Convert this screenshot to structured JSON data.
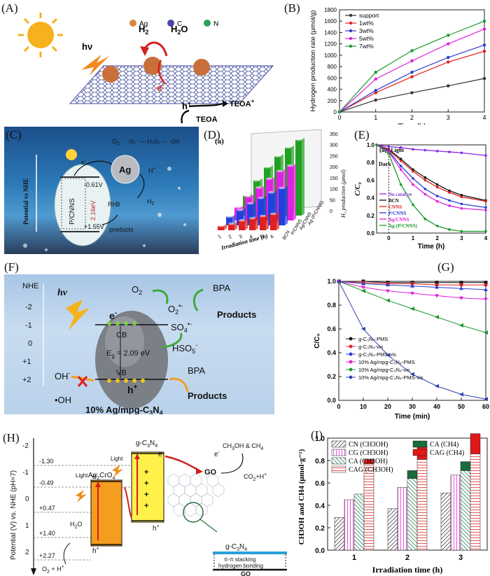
{
  "panels": {
    "A": {
      "label": "(A)",
      "legend": [
        "Ag",
        "C",
        "N"
      ],
      "legend_colors": [
        "#d98540",
        "#4a46a8",
        "#2fa05a"
      ],
      "hv": "hν",
      "h2": "H",
      "h2_sub": "2",
      "h2o": "H",
      "h2o_sub": "2",
      "h2o_tail": "O",
      "electron": "e",
      "hole": "h",
      "sup_minus": "-",
      "sup_plus": "+",
      "teoa_plus": "TEOA",
      "teoa": "TEOA"
    },
    "B": {
      "label": "(B)",
      "chart_data": {
        "type": "line",
        "xlabel": "Time (h)",
        "ylabel": "Hydrogen production rate (μmol/g)",
        "x": [
          0,
          1,
          2,
          3,
          4
        ],
        "xlim": [
          0,
          4
        ],
        "ylim": [
          0,
          1800
        ],
        "yticks": [
          0,
          200,
          400,
          600,
          800,
          1000,
          1200,
          1400,
          1600,
          1800
        ],
        "series": [
          {
            "name": "support",
            "color": "#333333",
            "values": [
              0,
              210,
              340,
              460,
              590
            ]
          },
          {
            "name": "1wt%",
            "color": "#e02020",
            "values": [
              0,
              340,
              620,
              880,
              1070
            ]
          },
          {
            "name": "3wt%",
            "color": "#2b3fd0",
            "values": [
              0,
              380,
              700,
              960,
              1180
            ]
          },
          {
            "name": "5wt%",
            "color": "#e020d8",
            "values": [
              0,
              580,
              900,
              1200,
              1460
            ]
          },
          {
            "name": "7wt%",
            "color": "#1a9a2a",
            "values": [
              0,
              700,
              1080,
              1350,
              1600
            ]
          }
        ]
      }
    },
    "C": {
      "label": "(C)",
      "axis": "Potential vs NHE",
      "catalyst": "P/CNNS",
      "ag": "Ag",
      "cb": "-0.61V",
      "vb": "+1.55V",
      "gap": "2.16eV",
      "h2": "H",
      "h2_sub": "2",
      "hplus": "H",
      "hplus_sup": "+",
      "rhb": "RhB",
      "products": "products",
      "o2": "O",
      "o2_sub": "2",
      "chain": "·O₂⁻ — H₂O₂ — ·OH",
      "electron": "e",
      "electron_sup": "-"
    },
    "D": {
      "label": "(D)",
      "sub": "(a)",
      "xlabel": "Irradiation time (h)",
      "zlabel": "H₂ production (μmol)",
      "zticks": [
        "0",
        "50",
        "100",
        "150",
        "200",
        "250",
        "300",
        "350"
      ],
      "series_labels": [
        "BCN",
        "P/CNNS",
        "Ag/CNNS",
        "Ag-(P/CNNS)"
      ],
      "colors": [
        "#303030",
        "#e02020",
        "#2040e0",
        "#e020e0",
        "#20a020"
      ],
      "chart_data": {
        "type": "bar",
        "title": "",
        "categories": [
          "1",
          "2",
          "3",
          "4",
          "5",
          "6"
        ],
        "series": [
          {
            "name": "BCN",
            "values": [
              20,
              30,
              45,
              55,
              65,
              75
            ]
          },
          {
            "name": "P/CNNS",
            "values": [
              40,
              70,
              100,
              125,
              150,
              170
            ]
          },
          {
            "name": "Ag/CNNS",
            "values": [
              60,
              110,
              150,
              190,
              225,
              250
            ]
          },
          {
            "name": "Ag-(P/CNNS)",
            "values": [
              90,
              160,
              220,
              270,
              310,
              345
            ]
          }
        ],
        "zlim": [
          0,
          350
        ]
      }
    },
    "E": {
      "label": "(E)",
      "sub": "(a)",
      "light": "Light",
      "dark": "Dark",
      "chart_data": {
        "type": "line",
        "xlabel": "Time (h)",
        "ylabel": "C/C₀",
        "x": [
          -0.5,
          0,
          0.5,
          1,
          1.5,
          2,
          2.5,
          3,
          4
        ],
        "xlim": [
          -0.5,
          4
        ],
        "ylim": [
          0,
          1.0
        ],
        "xticks": [
          0,
          1,
          2,
          3,
          4
        ],
        "yticks": [
          0,
          0.2,
          0.4,
          0.6,
          0.8,
          1.0
        ],
        "series": [
          {
            "name": "No catalyst",
            "color": "#8a2be2",
            "values": [
              1.0,
              0.98,
              0.97,
              0.95,
              0.94,
              0.93,
              0.92,
              0.91,
              0.88
            ]
          },
          {
            "name": "BCN",
            "color": "#111111",
            "values": [
              1.0,
              0.95,
              0.84,
              0.72,
              0.63,
              0.55,
              0.48,
              0.43,
              0.37
            ]
          },
          {
            "name": "CNNS",
            "color": "#e02020",
            "values": [
              1.0,
              0.94,
              0.82,
              0.7,
              0.6,
              0.52,
              0.46,
              0.41,
              0.36
            ]
          },
          {
            "name": "P/CNNS",
            "color": "#2b3fd0",
            "values": [
              1.0,
              0.93,
              0.76,
              0.62,
              0.5,
              0.42,
              0.37,
              0.33,
              0.29
            ]
          },
          {
            "name": "Ag/CNNS",
            "color": "#e020d8",
            "values": [
              1.0,
              0.92,
              0.72,
              0.55,
              0.44,
              0.36,
              0.31,
              0.28,
              0.26
            ]
          },
          {
            "name": "Ag-(P/CNNS)",
            "color": "#1a9a2a",
            "values": [
              1.0,
              0.9,
              0.55,
              0.32,
              0.16,
              0.08,
              0.04,
              0.02,
              0.02
            ]
          }
        ]
      }
    },
    "F": {
      "label": "(F)",
      "nhe": "NHE",
      "ticks": [
        "-2",
        "-1",
        "0",
        "+1",
        "+2"
      ],
      "hv": "hv",
      "cb": "CB",
      "vb": "VB",
      "eg": "E",
      "eg_sub": "g",
      "eg_val": " = 2.09 eV",
      "electron": "e",
      "electron_sup": "-",
      "hole": "h",
      "hole_sup": "+",
      "o2": "O",
      "o2_sub": "2",
      "o2rad": "O",
      "o2rad_sub": "2",
      "o2rad_sup": "•-",
      "bpa_top": "BPA",
      "products_top": "Products",
      "so4": "SO",
      "so4_sub": "4",
      "so4_sup": "•-",
      "hso5": "HSO",
      "hso5_sub": "5",
      "hso5_sup": "-",
      "bpa_bottom": "BPA",
      "products_bottom": "Products",
      "ohminus": "OH",
      "ohminus_sup": "-",
      "ohrad": "•OH",
      "caption": "10% Ag/mpg-C",
      "caption_sub1": "3",
      "caption_mid": "N",
      "caption_sub2": "4"
    },
    "G": {
      "label": "(G)",
      "chart_data": {
        "type": "line",
        "xlabel": "Time (min)",
        "ylabel": "C/C₀",
        "x": [
          0,
          10,
          20,
          30,
          40,
          50,
          60
        ],
        "xlim": [
          0,
          60
        ],
        "ylim": [
          0,
          1.0
        ],
        "yticks": [
          0.0,
          0.2,
          0.4,
          0.6,
          0.8,
          1.0
        ],
        "xticks": [
          0,
          10,
          20,
          30,
          40,
          50,
          60
        ],
        "series": [
          {
            "name": "g-C₃N₄-PMS",
            "color": "#111111",
            "values": [
              1.0,
              1.0,
              0.99,
              0.99,
              0.99,
              0.99,
              0.99
            ]
          },
          {
            "name": "g-C₃N₄-vis",
            "color": "#e02020",
            "values": [
              1.0,
              0.99,
              0.98,
              0.98,
              0.97,
              0.97,
              0.97
            ]
          },
          {
            "name": "g-C₃N₄-PMS-vis",
            "color": "#2b3fd0",
            "values": [
              1.0,
              0.98,
              0.97,
              0.96,
              0.95,
              0.94,
              0.93
            ]
          },
          {
            "name": "10% Ag/mpg-C₃N₄-PMS",
            "color": "#e020d8",
            "values": [
              1.0,
              0.95,
              0.92,
              0.9,
              0.88,
              0.86,
              0.85
            ]
          },
          {
            "name": "10% Ag/mpg-C₃N₄-vis",
            "color": "#1a9a2a",
            "values": [
              1.0,
              0.92,
              0.84,
              0.77,
              0.7,
              0.63,
              0.57
            ]
          },
          {
            "name": "10% Ag/mpg-C₃N₄-PMS-vis",
            "color": "#3040b0",
            "values": [
              1.0,
              0.6,
              0.38,
              0.22,
              0.12,
              0.05,
              0.01
            ]
          }
        ]
      }
    },
    "H": {
      "label": "(H)",
      "axis": "Potential (V) vs. NHE (pH=7)",
      "ticks": [
        "-2",
        "-1",
        "0",
        "1",
        "2"
      ],
      "levels": [
        "-1.30",
        "-0.49",
        "+0.47",
        "+1.40",
        "+2.27"
      ],
      "gcn": "g-C",
      "gcn_sub1": "3",
      "gcn_mid": "N",
      "gcn_sub2": "4",
      "agcro": "Ag",
      "agcro_sub1": "2",
      "agcro_mid": "CrO",
      "agcro_sub2": "4",
      "light1": "Light",
      "light2": "Light",
      "h2o": "H",
      "h2o_sub": "2",
      "h2o_tail": "O",
      "o2h": "O",
      "o2h_sub": "2",
      "o2h_tail": " + H",
      "o2h_sup": "+",
      "ch3oh": "CH",
      "ch3oh_sub": "3",
      "ch3oh_tail": "OH & CH",
      "ch3oh_sub2": "4",
      "co2": "CO",
      "co2_sub": "2",
      "co2_tail": "+H",
      "co2_sup": "+",
      "go": "GO",
      "go2": "GO",
      "gcn2": "g-C",
      "gcn2_sub1": "3",
      "gcn2_mid": "N",
      "gcn2_sub2": "4",
      "pi": "π-π stacking",
      "hb": "hydrogen bonding",
      "electron": "e",
      "electron_sup": "-",
      "hole": "h",
      "hole_sup": "+"
    },
    "I": {
      "label": "(I)",
      "legend": [
        {
          "name": "CN",
          "species": "(CH3OH)"
        },
        {
          "name": "CG",
          "species": "(CH3OH)"
        },
        {
          "name": "CA",
          "species": "(CH3OH)"
        },
        {
          "name": "CAG",
          "species": "(CH3OH)"
        },
        {
          "name": "CA",
          "species": "(CH4)"
        },
        {
          "name": "CAG",
          "species": "(CH4)"
        }
      ],
      "chart_data": {
        "type": "bar",
        "xlabel": "Irradiation time (h)",
        "ylabel": "CH3OH and CH4 (μmol·g⁻¹)",
        "categories": [
          "1",
          "2",
          "3"
        ],
        "ylim": [
          0.0,
          1.0
        ],
        "yticks": [
          0.0,
          0.2,
          0.4,
          0.6,
          0.8,
          1.0
        ],
        "series": [
          {
            "name": "CN (CH3OH)",
            "values": [
              0.29,
              0.37,
              0.51
            ]
          },
          {
            "name": "CG (CH3OH)",
            "values": [
              0.45,
              0.56,
              0.67
            ]
          },
          {
            "name": "CA (CH3OH)",
            "values": [
              0.5,
              0.64,
              0.71
            ]
          },
          {
            "name": "CA (CH4)",
            "values": [
              0.0,
              0.07,
              0.08
            ]
          },
          {
            "name": "CAG (CH3OH)",
            "values": [
              0.77,
              0.81,
              0.86
            ]
          },
          {
            "name": "CAG (CH4)",
            "values": [
              0.04,
              0.12,
              0.18
            ]
          }
        ]
      }
    }
  }
}
